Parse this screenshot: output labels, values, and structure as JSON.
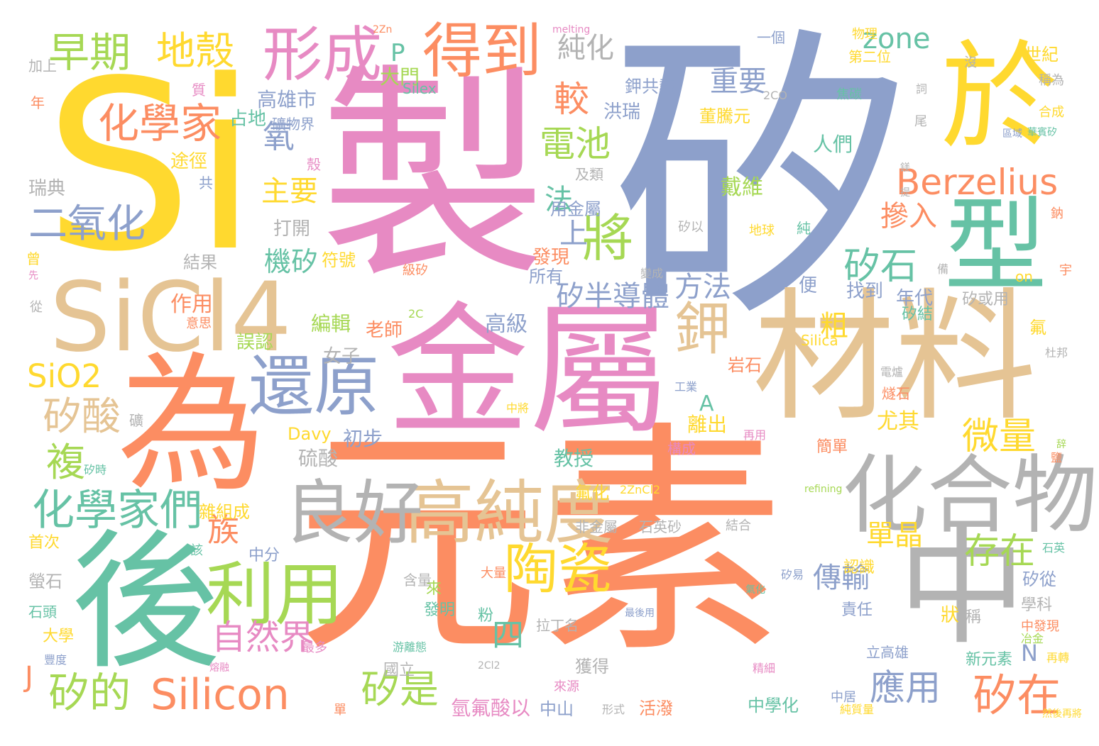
{
  "words": [
    {
      "text": "矽",
      "color": "#8da0cb"
    },
    {
      "text": "Si",
      "color": "#ffd92f"
    },
    {
      "text": "製",
      "color": "#e78ac3"
    },
    {
      "text": "元素",
      "color": "#fc8d62"
    },
    {
      "text": "金屬",
      "color": "#e78ac3"
    },
    {
      "text": "材料",
      "color": "#e5c494"
    },
    {
      "text": "為",
      "color": "#fc8d62"
    },
    {
      "text": "後",
      "color": "#66c2a5"
    },
    {
      "text": "SiCl4",
      "color": "#e5c494"
    },
    {
      "text": "於",
      "color": "#ffd92f"
    },
    {
      "text": "中",
      "color": "#b3b3b3"
    },
    {
      "text": "型",
      "color": "#66c2a5"
    },
    {
      "text": "化合物",
      "color": "#b3b3b3"
    },
    {
      "text": "高純度",
      "color": "#e5c494"
    },
    {
      "text": "良好",
      "color": "#b3b3b3"
    },
    {
      "text": "還原",
      "color": "#8da0cb"
    },
    {
      "text": "利用",
      "color": "#a6d854"
    },
    {
      "text": "得到",
      "color": "#fc8d62"
    },
    {
      "text": "形成",
      "color": "#e78ac3"
    },
    {
      "text": "鉀",
      "color": "#e5c494"
    },
    {
      "text": "將",
      "color": "#a6d854"
    },
    {
      "text": "陶瓷",
      "color": "#ffd92f"
    },
    {
      "text": "Berzelius",
      "color": "#fc8d62"
    },
    {
      "text": "Silicon",
      "color": "#fc8d62"
    },
    {
      "text": "化學家們",
      "color": "#66c2a5"
    },
    {
      "text": "化學家",
      "color": "#fc8d62"
    },
    {
      "text": "早期",
      "color": "#a6d854"
    },
    {
      "text": "地殼",
      "color": "#ffd92f"
    },
    {
      "text": "二氧化",
      "color": "#8da0cb"
    },
    {
      "text": "矽的",
      "color": "#a6d854"
    },
    {
      "text": "矽在",
      "color": "#fc8d62"
    },
    {
      "text": "矽酸",
      "color": "#e5c494"
    },
    {
      "text": "電池",
      "color": "#a6d854"
    },
    {
      "text": "SiO2",
      "color": "#ffd92f"
    },
    {
      "text": "矽石",
      "color": "#66c2a5"
    },
    {
      "text": "自然界",
      "color": "#e78ac3"
    },
    {
      "text": "存在",
      "color": "#a6d854"
    },
    {
      "text": "應用",
      "color": "#8da0cb"
    },
    {
      "text": "矽是",
      "color": "#a6d854"
    },
    {
      "text": "微量",
      "color": "#ffd92f"
    },
    {
      "text": "複",
      "color": "#a6d854"
    },
    {
      "text": "zone",
      "color": "#66c2a5"
    },
    {
      "text": "純化",
      "color": "#b3b3b3"
    },
    {
      "text": "較",
      "color": "#fc8d62"
    },
    {
      "text": "重要",
      "color": "#8da0cb"
    },
    {
      "text": "氧",
      "color": "#8da0cb"
    },
    {
      "text": "主要",
      "color": "#ffd92f"
    },
    {
      "text": "摻入",
      "color": "#fc8d62"
    },
    {
      "text": "方法",
      "color": "#8da0cb"
    },
    {
      "text": "矽半導體",
      "color": "#8da0cb"
    },
    {
      "text": "單晶",
      "color": "#ffd92f"
    },
    {
      "text": "傳輸",
      "color": "#8da0cb"
    },
    {
      "text": "族",
      "color": "#fc8d62"
    },
    {
      "text": "機矽",
      "color": "#66c2a5"
    },
    {
      "text": "法",
      "color": "#66c2a5"
    },
    {
      "text": "上",
      "color": "#8da0cb"
    },
    {
      "text": "粗",
      "color": "#ffd92f"
    },
    {
      "text": "A",
      "color": "#66c2a5"
    },
    {
      "text": "P",
      "color": "#66c2a5"
    },
    {
      "text": "J",
      "color": "#fc8d62"
    },
    {
      "text": "N",
      "color": "#8da0cb"
    },
    {
      "text": "四",
      "color": "#66c2a5"
    },
    {
      "text": "大門",
      "color": "#a6d854"
    },
    {
      "text": "高雄市",
      "color": "#8da0cb"
    },
    {
      "text": "礦物界",
      "color": "#8da0cb"
    },
    {
      "text": "占地",
      "color": "#66c2a5"
    },
    {
      "text": "洪瑞",
      "color": "#8da0cb"
    },
    {
      "text": "鉀共熱",
      "color": "#8da0cb"
    },
    {
      "text": "董騰元",
      "color": "#ffd92f"
    },
    {
      "text": "人們",
      "color": "#66c2a5"
    },
    {
      "text": "戴維",
      "color": "#a6d854"
    },
    {
      "text": "及類",
      "color": "#b3b3b3"
    },
    {
      "text": "途徑",
      "color": "#ffd92f"
    },
    {
      "text": "瑞典",
      "color": "#b3b3b3"
    },
    {
      "text": "打開",
      "color": "#b3b3b3"
    },
    {
      "text": "用金屬",
      "color": "#8da0cb"
    },
    {
      "text": "結果",
      "color": "#b3b3b3"
    },
    {
      "text": "符號",
      "color": "#ffd92f"
    },
    {
      "text": "發現",
      "color": "#fc8d62"
    },
    {
      "text": "所有",
      "color": "#8da0cb"
    },
    {
      "text": "作用",
      "color": "#fc8d62"
    },
    {
      "text": "編輯",
      "color": "#a6d854"
    },
    {
      "text": "老師",
      "color": "#fc8d62"
    },
    {
      "text": "高級",
      "color": "#8da0cb"
    },
    {
      "text": "誤認",
      "color": "#a6d854"
    },
    {
      "text": "女子",
      "color": "#b3b3b3"
    },
    {
      "text": "找到",
      "color": "#8da0cb"
    },
    {
      "text": "年代",
      "color": "#8da0cb"
    },
    {
      "text": "便",
      "color": "#8da0cb"
    },
    {
      "text": "矽或用",
      "color": "#b3b3b3"
    },
    {
      "text": "矽結",
      "color": "#66c2a5"
    },
    {
      "text": "岩石",
      "color": "#fc8d62"
    },
    {
      "text": "離出",
      "color": "#ffd92f"
    },
    {
      "text": "初步",
      "color": "#8da0cb"
    },
    {
      "text": "硫酸",
      "color": "#b3b3b3"
    },
    {
      "text": "教授",
      "color": "#66c2a5"
    },
    {
      "text": "尤其",
      "color": "#ffd92f"
    },
    {
      "text": "Davy",
      "color": "#ffd92f"
    },
    {
      "text": "Silica",
      "color": "#ffd92f"
    },
    {
      "text": "Silex",
      "color": "#66c2a5"
    },
    {
      "text": "melting",
      "color": "#e78ac3"
    },
    {
      "text": "refining",
      "color": "#a6d854"
    },
    {
      "text": "2Zn",
      "color": "#fc8d62"
    },
    {
      "text": "2CO",
      "color": "#b3b3b3"
    },
    {
      "text": "2C",
      "color": "#a6d854"
    },
    {
      "text": "2ZnCl2",
      "color": "#ffd92f"
    },
    {
      "text": "2Cl2",
      "color": "#b3b3b3"
    },
    {
      "text": "一個",
      "color": "#8da0cb"
    },
    {
      "text": "物理",
      "color": "#ffd92f"
    },
    {
      "text": "第二位",
      "color": "#ffd92f"
    },
    {
      "text": "焦碳",
      "color": "#66c2a5"
    },
    {
      "text": "世紀",
      "color": "#ffd92f"
    },
    {
      "text": "稱為",
      "color": "#b3b3b3"
    },
    {
      "text": "合成",
      "color": "#ffd92f"
    },
    {
      "text": "華賓矽",
      "color": "#66c2a5"
    },
    {
      "text": "區域",
      "color": "#8da0cb"
    },
    {
      "text": "加上",
      "color": "#b3b3b3"
    },
    {
      "text": "年",
      "color": "#fc8d62"
    },
    {
      "text": "質",
      "color": "#e78ac3"
    },
    {
      "text": "殼",
      "color": "#e78ac3"
    },
    {
      "text": "共",
      "color": "#8da0cb"
    },
    {
      "text": "曾",
      "color": "#ffd92f"
    },
    {
      "text": "先",
      "color": "#e78ac3"
    },
    {
      "text": "從",
      "color": "#b3b3b3"
    },
    {
      "text": "意思",
      "color": "#fc8d62"
    },
    {
      "text": "雜組成",
      "color": "#ffd92f"
    },
    {
      "text": "首次",
      "color": "#ffd92f"
    },
    {
      "text": "中分",
      "color": "#8da0cb"
    },
    {
      "text": "該",
      "color": "#66c2a5"
    },
    {
      "text": "螢石",
      "color": "#b3b3b3"
    },
    {
      "text": "石頭",
      "color": "#66c2a5"
    },
    {
      "text": "大學",
      "color": "#ffd92f"
    },
    {
      "text": "豐度",
      "color": "#8da0cb"
    },
    {
      "text": "礦",
      "color": "#b3b3b3"
    },
    {
      "text": "矽時",
      "color": "#66c2a5"
    },
    {
      "text": "氫氟酸以",
      "color": "#e78ac3"
    },
    {
      "text": "中山",
      "color": "#8da0cb"
    },
    {
      "text": "活潑",
      "color": "#fc8d62"
    },
    {
      "text": "形式",
      "color": "#b3b3b3"
    },
    {
      "text": "中學化",
      "color": "#66c2a5"
    },
    {
      "text": "中居",
      "color": "#8da0cb"
    },
    {
      "text": "純質量",
      "color": "#ffd92f"
    },
    {
      "text": "然後再將",
      "color": "#ffd92f"
    },
    {
      "text": "國立",
      "color": "#b3b3b3"
    },
    {
      "text": "獲得",
      "color": "#b3b3b3"
    },
    {
      "text": "拉丁名",
      "color": "#b3b3b3"
    },
    {
      "text": "游離態",
      "color": "#66c2a5"
    },
    {
      "text": "發明",
      "color": "#66c2a5"
    },
    {
      "text": "粉",
      "color": "#66c2a5"
    },
    {
      "text": "來",
      "color": "#a6d854"
    },
    {
      "text": "含量",
      "color": "#b3b3b3"
    },
    {
      "text": "最多",
      "color": "#e78ac3"
    },
    {
      "text": "大量",
      "color": "#fc8d62"
    },
    {
      "text": "氟化",
      "color": "#ffd92f"
    },
    {
      "text": "非金屬",
      "color": "#b3b3b3"
    },
    {
      "text": "石英砂",
      "color": "#b3b3b3"
    },
    {
      "text": "結合",
      "color": "#b3b3b3"
    },
    {
      "text": "石英",
      "color": "#66c2a5"
    },
    {
      "text": "認識",
      "color": "#ffd92f"
    },
    {
      "text": "矽從",
      "color": "#8da0cb"
    },
    {
      "text": "學科",
      "color": "#b3b3b3"
    },
    {
      "text": "中發現",
      "color": "#fc8d62"
    },
    {
      "text": "責任",
      "color": "#8da0cb"
    },
    {
      "text": "狀",
      "color": "#ffd92f"
    },
    {
      "text": "稱",
      "color": "#b3b3b3"
    },
    {
      "text": "立高雄",
      "color": "#8da0cb"
    },
    {
      "text": "新元素",
      "color": "#66c2a5"
    },
    {
      "text": "冶金",
      "color": "#a6d854"
    },
    {
      "text": "精細",
      "color": "#e78ac3"
    },
    {
      "text": "再轉",
      "color": "#ffd92f"
    },
    {
      "text": "矽易",
      "color": "#8da0cb"
    },
    {
      "text": "氣化",
      "color": "#66c2a5"
    },
    {
      "text": "最後用",
      "color": "#8da0cb"
    },
    {
      "text": "簡單",
      "color": "#fc8d62"
    },
    {
      "text": "構成",
      "color": "#e78ac3"
    },
    {
      "text": "中將",
      "color": "#ffd92f"
    },
    {
      "text": "燧石",
      "color": "#fc8d62"
    },
    {
      "text": "氟",
      "color": "#ffd92f"
    },
    {
      "text": "杜邦",
      "color": "#b3b3b3"
    },
    {
      "text": "辞",
      "color": "#a6d854"
    },
    {
      "text": "鹽",
      "color": "#fc8d62"
    },
    {
      "text": "再用",
      "color": "#e78ac3"
    },
    {
      "text": "電爐",
      "color": "#b3b3b3"
    },
    {
      "text": "工業",
      "color": "#8da0cb"
    },
    {
      "text": "矽以",
      "color": "#b3b3b3"
    },
    {
      "text": "地球",
      "color": "#ffd92f"
    },
    {
      "text": "純",
      "color": "#66c2a5"
    },
    {
      "text": "變成",
      "color": "#b3b3b3"
    },
    {
      "text": "級矽",
      "color": "#fc8d62"
    },
    {
      "text": "尾",
      "color": "#b3b3b3"
    },
    {
      "text": "詞",
      "color": "#b3b3b3"
    },
    {
      "text": "鎂",
      "color": "#b3b3b3"
    },
    {
      "text": "沒",
      "color": "#b3b3b3"
    },
    {
      "text": "備",
      "color": "#b3b3b3"
    },
    {
      "text": "宇",
      "color": "#fc8d62"
    },
    {
      "text": "鈉",
      "color": "#fc8d62"
    },
    {
      "text": "on",
      "color": "#ffd92f"
    },
    {
      "text": "來源",
      "color": "#e78ac3"
    },
    {
      "text": "單",
      "color": "#fc8d62"
    },
    {
      "text": "熔融",
      "color": "#e78ac3"
    },
    {
      "text": "提",
      "color": "#b3b3b3"
    }
  ]
}
